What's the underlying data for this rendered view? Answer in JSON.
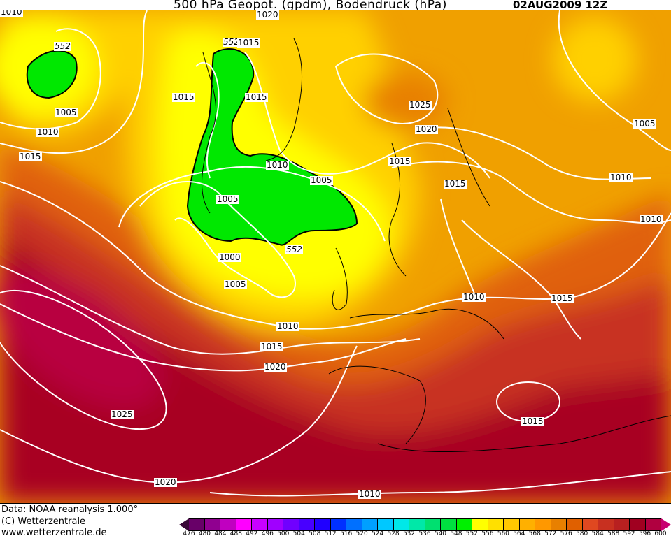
{
  "header": {
    "title": "500 hPa Geopot. (gpdm), Bodendruck (hPa)",
    "date": "02AUG2009 12Z"
  },
  "footer": {
    "data_source": "Data: NOAA reanalysis 1.000°",
    "copyright": "(C) Wetterzentrale",
    "website": "www.wetterzentrale.de"
  },
  "map": {
    "fields": [
      "500 hPa geopotential (gpdm, shaded)",
      "surface pressure (hPa, white contours)"
    ],
    "contour_labels": [
      "1010",
      "1020",
      "552",
      "552",
      "1015",
      "1015",
      "1015",
      "1005",
      "1010",
      "1015",
      "1025",
      "1020",
      "1015",
      "1015",
      "1005",
      "1010",
      "1005",
      "1005",
      "1010",
      "1000",
      "552",
      "1010",
      "1005",
      "1010",
      "1015",
      "1010",
      "1015",
      "1020",
      "1025",
      "1015",
      "1020",
      "1010"
    ]
  },
  "colorbar": {
    "ticks": [
      "476",
      "480",
      "484",
      "488",
      "492",
      "496",
      "500",
      "504",
      "508",
      "512",
      "516",
      "520",
      "524",
      "528",
      "532",
      "536",
      "540",
      "548",
      "552",
      "556",
      "560",
      "564",
      "568",
      "572",
      "576",
      "580",
      "584",
      "588",
      "592",
      "596",
      "600"
    ],
    "colors": [
      "#3a0838",
      "#680068",
      "#900090",
      "#c000c0",
      "#ff00ff",
      "#c800ff",
      "#a000ff",
      "#7000ff",
      "#4800ff",
      "#2000ff",
      "#0030ff",
      "#0070ff",
      "#00a0ff",
      "#00c8ff",
      "#00e8e8",
      "#00e8a8",
      "#00e070",
      "#00e040",
      "#00f000",
      "#ffff00",
      "#ffe000",
      "#ffc800",
      "#ffb000",
      "#ff9800",
      "#e88000",
      "#e06000",
      "#e04820",
      "#c83020",
      "#b82020",
      "#a00020",
      "#b00040",
      "#c80070"
    ]
  }
}
